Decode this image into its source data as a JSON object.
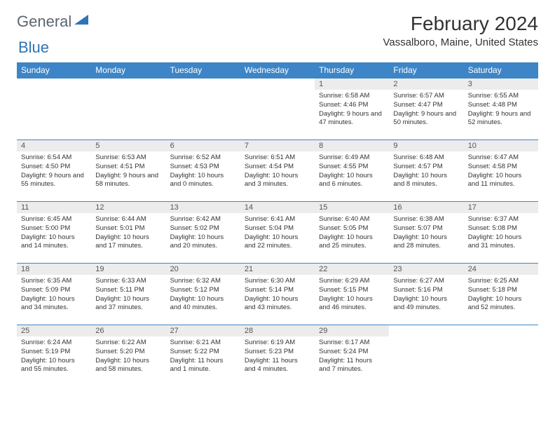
{
  "logo": {
    "text1": "General",
    "text2": "Blue",
    "color1": "#5b6670",
    "color2": "#2e75b6"
  },
  "title": "February 2024",
  "location": "Vassalboro, Maine, United States",
  "header_bg": "#3d85c6",
  "daynum_bg": "#ececec",
  "border_color": "#3d85c6",
  "weekdays": [
    "Sunday",
    "Monday",
    "Tuesday",
    "Wednesday",
    "Thursday",
    "Friday",
    "Saturday"
  ],
  "weeks": [
    [
      null,
      null,
      null,
      null,
      {
        "n": "1",
        "sr": "6:58 AM",
        "ss": "4:46 PM",
        "dl": "9 hours and 47 minutes."
      },
      {
        "n": "2",
        "sr": "6:57 AM",
        "ss": "4:47 PM",
        "dl": "9 hours and 50 minutes."
      },
      {
        "n": "3",
        "sr": "6:55 AM",
        "ss": "4:48 PM",
        "dl": "9 hours and 52 minutes."
      }
    ],
    [
      {
        "n": "4",
        "sr": "6:54 AM",
        "ss": "4:50 PM",
        "dl": "9 hours and 55 minutes."
      },
      {
        "n": "5",
        "sr": "6:53 AM",
        "ss": "4:51 PM",
        "dl": "9 hours and 58 minutes."
      },
      {
        "n": "6",
        "sr": "6:52 AM",
        "ss": "4:53 PM",
        "dl": "10 hours and 0 minutes."
      },
      {
        "n": "7",
        "sr": "6:51 AM",
        "ss": "4:54 PM",
        "dl": "10 hours and 3 minutes."
      },
      {
        "n": "8",
        "sr": "6:49 AM",
        "ss": "4:55 PM",
        "dl": "10 hours and 6 minutes."
      },
      {
        "n": "9",
        "sr": "6:48 AM",
        "ss": "4:57 PM",
        "dl": "10 hours and 8 minutes."
      },
      {
        "n": "10",
        "sr": "6:47 AM",
        "ss": "4:58 PM",
        "dl": "10 hours and 11 minutes."
      }
    ],
    [
      {
        "n": "11",
        "sr": "6:45 AM",
        "ss": "5:00 PM",
        "dl": "10 hours and 14 minutes."
      },
      {
        "n": "12",
        "sr": "6:44 AM",
        "ss": "5:01 PM",
        "dl": "10 hours and 17 minutes."
      },
      {
        "n": "13",
        "sr": "6:42 AM",
        "ss": "5:02 PM",
        "dl": "10 hours and 20 minutes."
      },
      {
        "n": "14",
        "sr": "6:41 AM",
        "ss": "5:04 PM",
        "dl": "10 hours and 22 minutes."
      },
      {
        "n": "15",
        "sr": "6:40 AM",
        "ss": "5:05 PM",
        "dl": "10 hours and 25 minutes."
      },
      {
        "n": "16",
        "sr": "6:38 AM",
        "ss": "5:07 PM",
        "dl": "10 hours and 28 minutes."
      },
      {
        "n": "17",
        "sr": "6:37 AM",
        "ss": "5:08 PM",
        "dl": "10 hours and 31 minutes."
      }
    ],
    [
      {
        "n": "18",
        "sr": "6:35 AM",
        "ss": "5:09 PM",
        "dl": "10 hours and 34 minutes."
      },
      {
        "n": "19",
        "sr": "6:33 AM",
        "ss": "5:11 PM",
        "dl": "10 hours and 37 minutes."
      },
      {
        "n": "20",
        "sr": "6:32 AM",
        "ss": "5:12 PM",
        "dl": "10 hours and 40 minutes."
      },
      {
        "n": "21",
        "sr": "6:30 AM",
        "ss": "5:14 PM",
        "dl": "10 hours and 43 minutes."
      },
      {
        "n": "22",
        "sr": "6:29 AM",
        "ss": "5:15 PM",
        "dl": "10 hours and 46 minutes."
      },
      {
        "n": "23",
        "sr": "6:27 AM",
        "ss": "5:16 PM",
        "dl": "10 hours and 49 minutes."
      },
      {
        "n": "24",
        "sr": "6:25 AM",
        "ss": "5:18 PM",
        "dl": "10 hours and 52 minutes."
      }
    ],
    [
      {
        "n": "25",
        "sr": "6:24 AM",
        "ss": "5:19 PM",
        "dl": "10 hours and 55 minutes."
      },
      {
        "n": "26",
        "sr": "6:22 AM",
        "ss": "5:20 PM",
        "dl": "10 hours and 58 minutes."
      },
      {
        "n": "27",
        "sr": "6:21 AM",
        "ss": "5:22 PM",
        "dl": "11 hours and 1 minute."
      },
      {
        "n": "28",
        "sr": "6:19 AM",
        "ss": "5:23 PM",
        "dl": "11 hours and 4 minutes."
      },
      {
        "n": "29",
        "sr": "6:17 AM",
        "ss": "5:24 PM",
        "dl": "11 hours and 7 minutes."
      },
      null,
      null
    ]
  ],
  "labels": {
    "sunrise": "Sunrise:",
    "sunset": "Sunset:",
    "daylight": "Daylight:"
  }
}
